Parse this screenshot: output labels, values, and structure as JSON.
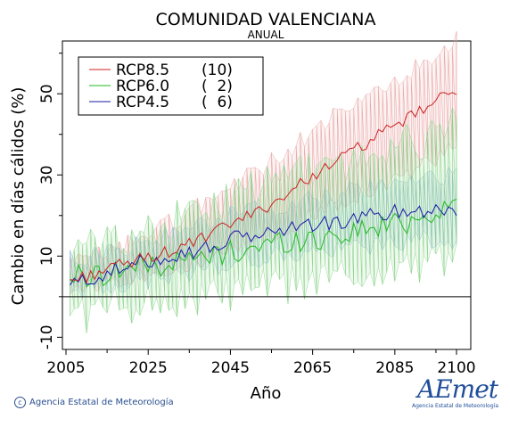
{
  "colors": {
    "rcp85": "#cc2222",
    "rcp60": "#22bb22",
    "rcp45": "#1a1aaa",
    "rcp85_band": "#e89a9a",
    "rcp60_band": "#7fd07f",
    "rcp45_band": "#8fb8d6"
  },
  "chart_data": {
    "type": "line",
    "title": "COMUNIDAD VALENCIANA",
    "subtitle": "ANUAL",
    "xlabel": "Año",
    "ylabel": "Cambio en días cálidos (%)",
    "xlim": [
      2005,
      2100
    ],
    "ylim": [
      -13,
      63
    ],
    "x_ticks": [
      2005,
      2025,
      2045,
      2065,
      2085,
      2100
    ],
    "y_ticks": [
      -10,
      10,
      30,
      50
    ],
    "legend_position": "top-left",
    "zero_line": true,
    "grid": false,
    "series": [
      {
        "name": "RCP8.5",
        "count": "(10)",
        "color_key": "rcp85",
        "anchors_x": [
          2006,
          2010,
          2015,
          2020,
          2025,
          2030,
          2035,
          2040,
          2045,
          2050,
          2055,
          2060,
          2065,
          2070,
          2075,
          2080,
          2085,
          2090,
          2095,
          2100
        ],
        "anchors_mean": [
          4,
          5,
          7,
          8,
          10,
          11,
          13,
          15,
          18,
          20,
          23,
          26,
          30,
          33,
          36,
          39,
          42,
          45,
          48,
          51
        ],
        "anchors_low": [
          2,
          3,
          4,
          5,
          6,
          7,
          8,
          9,
          11,
          13,
          15,
          17,
          20,
          23,
          25,
          27,
          29,
          31,
          34,
          37
        ],
        "anchors_high": [
          8,
          9,
          11,
          13,
          16,
          18,
          21,
          24,
          27,
          30,
          33,
          37,
          41,
          44,
          47,
          50,
          53,
          56,
          58,
          63
        ]
      },
      {
        "name": "RCP6.0",
        "count": "(  2)",
        "color_key": "rcp60",
        "anchors_x": [
          2006,
          2010,
          2015,
          2020,
          2025,
          2030,
          2035,
          2040,
          2045,
          2050,
          2055,
          2060,
          2065,
          2070,
          2075,
          2080,
          2085,
          2090,
          2095,
          2100
        ],
        "anchors_mean": [
          5,
          5,
          6,
          7,
          8,
          8,
          9,
          10,
          11,
          12,
          13,
          14,
          14,
          15,
          16,
          17,
          18,
          19,
          21,
          24
        ],
        "anchors_low": [
          -3,
          -4,
          -3,
          -2,
          -1,
          -1,
          -1,
          0,
          1,
          2,
          2,
          3,
          4,
          5,
          5,
          6,
          7,
          8,
          9,
          10
        ],
        "anchors_high": [
          10,
          12,
          14,
          15,
          16,
          18,
          20,
          22,
          24,
          26,
          28,
          30,
          31,
          32,
          33,
          35,
          37,
          38,
          40,
          42
        ]
      },
      {
        "name": "RCP4.5",
        "count": "(  6)",
        "color_key": "rcp45",
        "anchors_x": [
          2006,
          2010,
          2015,
          2020,
          2025,
          2030,
          2035,
          2040,
          2045,
          2050,
          2055,
          2060,
          2065,
          2070,
          2075,
          2080,
          2085,
          2090,
          2095,
          2100
        ],
        "anchors_mean": [
          3,
          4,
          6,
          7,
          9,
          10,
          11,
          12,
          14,
          15,
          16,
          17,
          18,
          18,
          19,
          20,
          21,
          21,
          22,
          21
        ],
        "anchors_low": [
          1,
          2,
          3,
          3,
          4,
          5,
          6,
          7,
          8,
          9,
          10,
          10,
          11,
          11,
          12,
          13,
          13,
          14,
          14,
          14
        ],
        "anchors_high": [
          9,
          10,
          11,
          12,
          14,
          15,
          17,
          18,
          20,
          21,
          22,
          23,
          24,
          25,
          26,
          27,
          28,
          28,
          29,
          30
        ]
      }
    ]
  },
  "footer": {
    "credit": "Agencia Estatal de Meteorología",
    "logo_text": "AEmet",
    "logo_sub": "Agencia Estatal de Meteorología"
  }
}
